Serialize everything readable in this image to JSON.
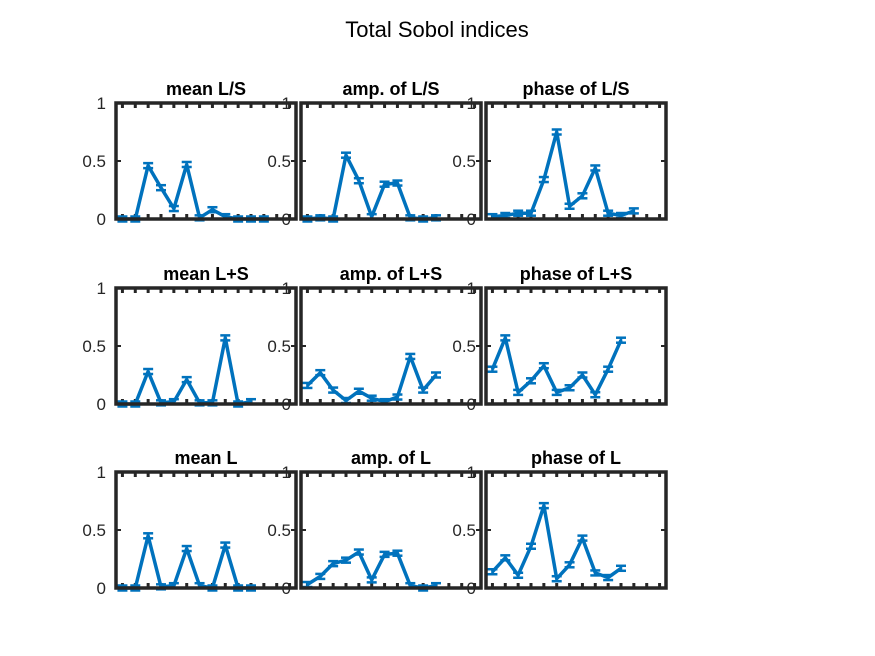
{
  "figure": {
    "title": "Total Sobol indices"
  },
  "style": {
    "line_color": "#0072BD",
    "axes_color": "#262626"
  },
  "chart_data": [
    {
      "type": "line",
      "title": "mean L/S",
      "ylim": [
        0,
        1
      ],
      "yticks": [
        "0",
        "0.5",
        "1"
      ],
      "xlim": [
        0.5,
        14.5
      ],
      "x": [
        1,
        2,
        3,
        4,
        5,
        6,
        7,
        8,
        9,
        10,
        11,
        12,
        13,
        14
      ],
      "values": [
        0.0,
        0.0,
        0.46,
        0.27,
        0.09,
        0.47,
        0.01,
        0.08,
        0.02,
        0.0,
        0.0,
        0.0,
        null,
        null
      ],
      "error_bars": true
    },
    {
      "type": "line",
      "title": "amp. of L/S",
      "ylim": [
        0,
        1
      ],
      "yticks": [
        "0",
        "0.5",
        "1"
      ],
      "xlim": [
        0.5,
        14.5
      ],
      "x": [
        1,
        2,
        3,
        4,
        5,
        6,
        7,
        8,
        9,
        10,
        11,
        12,
        13,
        14
      ],
      "values": [
        0.0,
        0.01,
        0.0,
        0.55,
        0.33,
        0.02,
        0.3,
        0.31,
        0.01,
        0.0,
        0.01,
        null,
        null,
        null
      ],
      "error_bars": true
    },
    {
      "type": "line",
      "title": "phase of L/S",
      "ylim": [
        0,
        1
      ],
      "yticks": [
        "0",
        "0.5",
        "1"
      ],
      "xlim": [
        0.5,
        14.5
      ],
      "x": [
        1,
        2,
        3,
        4,
        5,
        6,
        7,
        8,
        9,
        10,
        11,
        12,
        13,
        14
      ],
      "values": [
        0.02,
        0.03,
        0.05,
        0.05,
        0.34,
        0.75,
        0.11,
        0.2,
        0.44,
        0.05,
        0.03,
        0.07,
        null,
        null
      ],
      "error_bars": true
    },
    {
      "type": "line",
      "title": "mean L+S",
      "ylim": [
        0,
        1
      ],
      "yticks": [
        "0",
        "0.5",
        "1"
      ],
      "xlim": [
        0.5,
        14.5
      ],
      "x": [
        1,
        2,
        3,
        4,
        5,
        6,
        7,
        8,
        9,
        10,
        11,
        12,
        13,
        14
      ],
      "values": [
        0.0,
        0.0,
        0.28,
        0.01,
        0.02,
        0.21,
        0.01,
        0.01,
        0.57,
        0.0,
        0.02,
        null,
        null,
        null
      ],
      "error_bars": true
    },
    {
      "type": "line",
      "title": "amp. of L+S",
      "ylim": [
        0,
        1
      ],
      "yticks": [
        "0",
        "0.5",
        "1"
      ],
      "xlim": [
        0.5,
        14.5
      ],
      "x": [
        1,
        2,
        3,
        4,
        5,
        6,
        7,
        8,
        9,
        10,
        11,
        12,
        13,
        14
      ],
      "values": [
        0.16,
        0.27,
        0.12,
        0.03,
        0.11,
        0.05,
        0.02,
        0.06,
        0.41,
        0.12,
        0.25,
        null,
        null,
        null
      ],
      "error_bars": true
    },
    {
      "type": "line",
      "title": "phase of L+S",
      "ylim": [
        0,
        1
      ],
      "yticks": [
        "0",
        "0.5",
        "1"
      ],
      "xlim": [
        0.5,
        14.5
      ],
      "x": [
        1,
        2,
        3,
        4,
        5,
        6,
        7,
        8,
        9,
        10,
        11,
        12,
        13,
        14
      ],
      "values": [
        0.3,
        0.57,
        0.1,
        0.2,
        0.33,
        0.1,
        0.14,
        0.25,
        0.08,
        0.3,
        0.55,
        null,
        null,
        null
      ],
      "error_bars": true
    },
    {
      "type": "line",
      "title": "mean L",
      "ylim": [
        0,
        1
      ],
      "yticks": [
        "0",
        "0.5",
        "1"
      ],
      "xlim": [
        0.5,
        14.5
      ],
      "x": [
        1,
        2,
        3,
        4,
        5,
        6,
        7,
        8,
        9,
        10,
        11,
        12,
        13,
        14
      ],
      "values": [
        0.0,
        0.0,
        0.45,
        0.01,
        0.02,
        0.34,
        0.02,
        0.0,
        0.37,
        0.0,
        0.0,
        null,
        null,
        null
      ],
      "error_bars": true
    },
    {
      "type": "line",
      "title": "amp. of L",
      "ylim": [
        0,
        1
      ],
      "yticks": [
        "0",
        "0.5",
        "1"
      ],
      "xlim": [
        0.5,
        14.5
      ],
      "x": [
        1,
        2,
        3,
        4,
        5,
        6,
        7,
        8,
        9,
        10,
        11,
        12,
        13,
        14
      ],
      "values": [
        0.03,
        0.1,
        0.21,
        0.24,
        0.31,
        0.07,
        0.29,
        0.3,
        0.02,
        0.0,
        0.02,
        null,
        null,
        null
      ],
      "error_bars": true
    },
    {
      "type": "line",
      "title": "phase of L",
      "ylim": [
        0,
        1
      ],
      "yticks": [
        "0",
        "0.5",
        "1"
      ],
      "xlim": [
        0.5,
        14.5
      ],
      "x": [
        1,
        2,
        3,
        4,
        5,
        6,
        7,
        8,
        9,
        10,
        11,
        12,
        13,
        14
      ],
      "values": [
        0.14,
        0.26,
        0.11,
        0.36,
        0.71,
        0.08,
        0.2,
        0.43,
        0.13,
        0.09,
        0.17,
        null,
        null,
        null
      ],
      "error_bars": true
    }
  ]
}
